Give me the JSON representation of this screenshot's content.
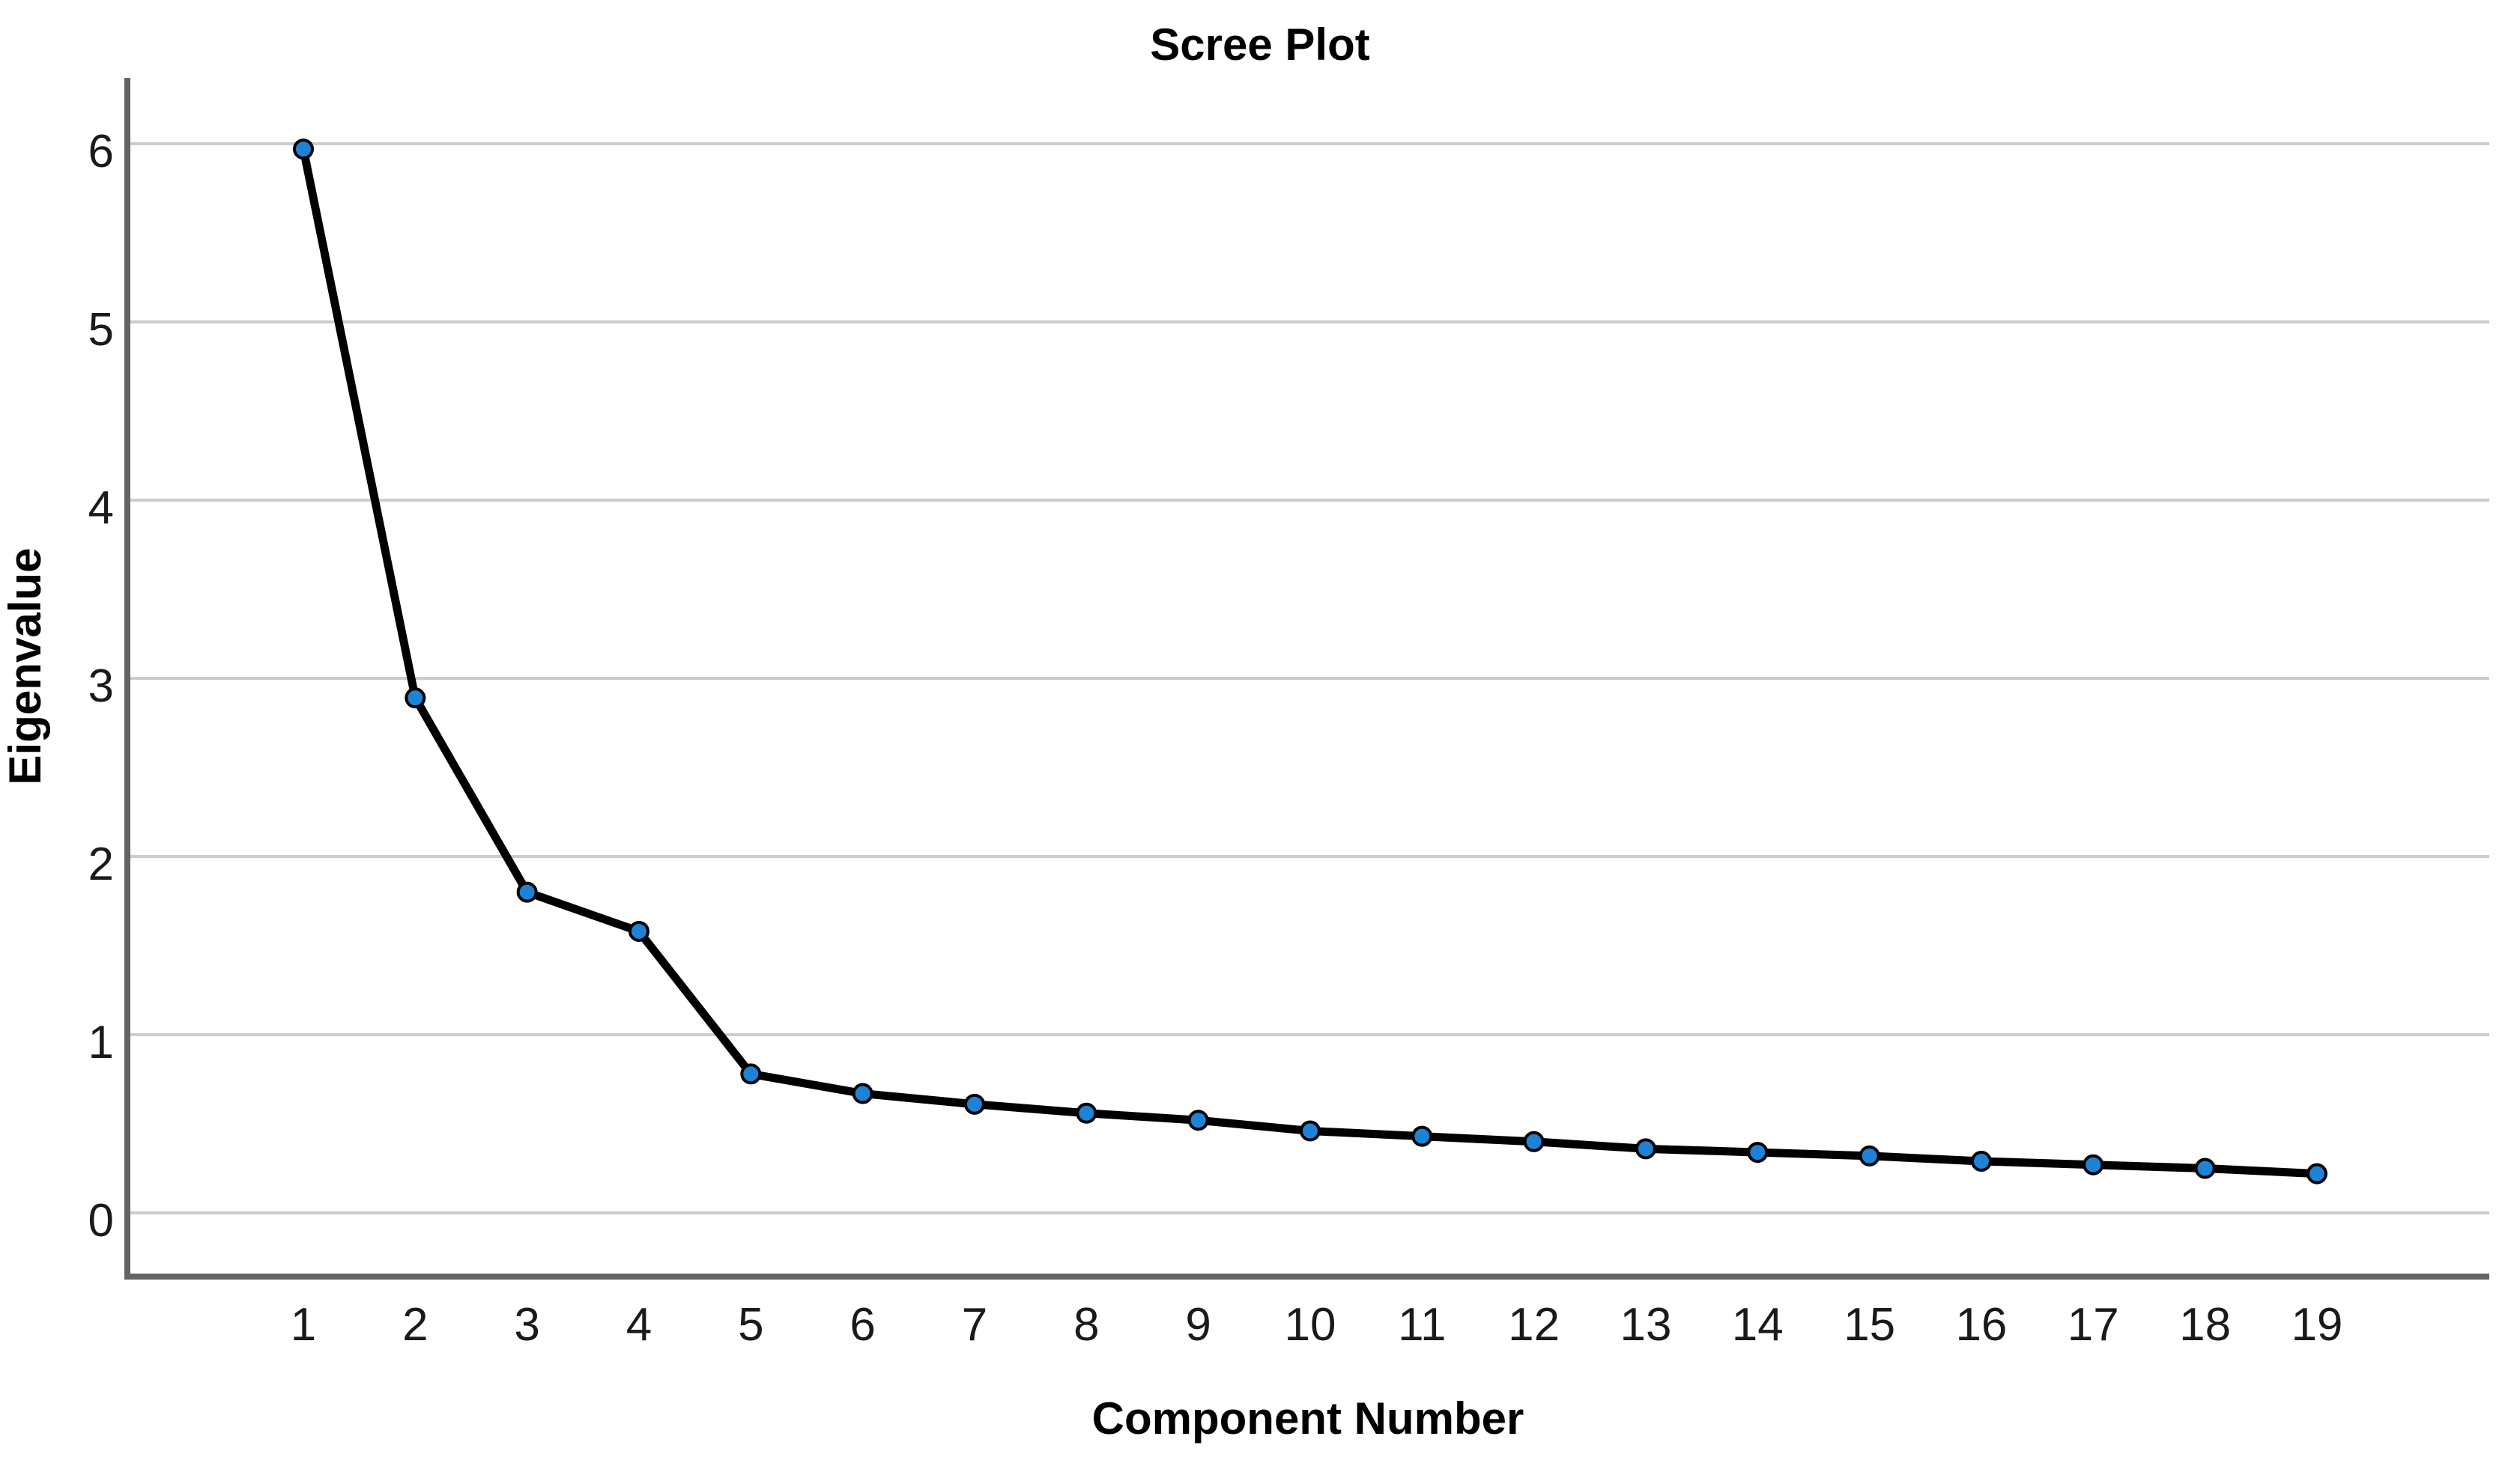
{
  "figure": {
    "title": "Scree Plot",
    "background": "#ffffff"
  },
  "chart_data": {
    "type": "line",
    "title": "Scree Plot",
    "xlabel": "Component Number",
    "ylabel": "Eigenvalue",
    "categories": [
      1,
      2,
      3,
      4,
      5,
      6,
      7,
      8,
      9,
      10,
      11,
      12,
      13,
      14,
      15,
      16,
      17,
      18,
      19
    ],
    "series": [
      {
        "name": "Eigenvalue",
        "values": [
          5.97,
          2.89,
          1.8,
          1.58,
          0.78,
          0.67,
          0.61,
          0.56,
          0.52,
          0.46,
          0.43,
          0.4,
          0.36,
          0.34,
          0.32,
          0.29,
          0.27,
          0.25,
          0.22
        ]
      }
    ],
    "ylim": [
      0,
      6
    ],
    "yticks": [
      0,
      1,
      2,
      3,
      4,
      5,
      6
    ],
    "grid": "horizontal-only",
    "legend": "none",
    "marker": "circle"
  },
  "style": {
    "marker_fill": "#1e82d7",
    "marker_stroke": "#000000",
    "line_color": "#000000",
    "gridline_color": "#cccccc",
    "axis_color": "#646464",
    "tick_label_color": "#1a1a1a",
    "title_color": "#000000"
  }
}
